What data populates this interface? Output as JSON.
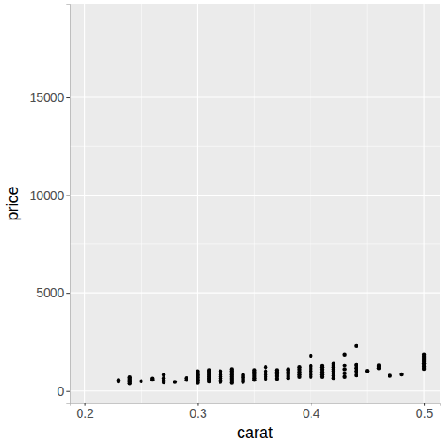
{
  "chart_data": {
    "type": "scatter",
    "x_label": "carat",
    "y_label": "price",
    "x": [
      0.23,
      0.23,
      0.24,
      0.24,
      0.24,
      0.24,
      0.24,
      0.25,
      0.26,
      0.26,
      0.27,
      0.27,
      0.27,
      0.27,
      0.28,
      0.29,
      0.29,
      0.3,
      0.3,
      0.3,
      0.3,
      0.3,
      0.3,
      0.3,
      0.3,
      0.3,
      0.31,
      0.31,
      0.31,
      0.31,
      0.31,
      0.31,
      0.31,
      0.31,
      0.32,
      0.32,
      0.32,
      0.32,
      0.32,
      0.32,
      0.32,
      0.33,
      0.33,
      0.33,
      0.33,
      0.33,
      0.33,
      0.33,
      0.33,
      0.34,
      0.34,
      0.34,
      0.34,
      0.34,
      0.34,
      0.35,
      0.35,
      0.35,
      0.35,
      0.35,
      0.35,
      0.36,
      0.36,
      0.36,
      0.36,
      0.36,
      0.36,
      0.37,
      0.37,
      0.37,
      0.37,
      0.37,
      0.38,
      0.38,
      0.38,
      0.38,
      0.38,
      0.38,
      0.39,
      0.39,
      0.39,
      0.39,
      0.39,
      0.4,
      0.4,
      0.4,
      0.4,
      0.4,
      0.4,
      0.4,
      0.4,
      0.41,
      0.41,
      0.41,
      0.41,
      0.41,
      0.41,
      0.42,
      0.42,
      0.42,
      0.42,
      0.42,
      0.42,
      0.42,
      0.42,
      0.43,
      0.43,
      0.43,
      0.43,
      0.43,
      0.44,
      0.44,
      0.44,
      0.44,
      0.44,
      0.44,
      0.45,
      0.46,
      0.46,
      0.46,
      0.47,
      0.48,
      0.5,
      0.5,
      0.5,
      0.5,
      0.5,
      0.5,
      0.5,
      0.5
    ],
    "values": [
      480,
      560,
      380,
      460,
      540,
      620,
      700,
      500,
      570,
      630,
      440,
      540,
      660,
      820,
      460,
      560,
      660,
      420,
      500,
      560,
      620,
      700,
      770,
      840,
      920,
      1000,
      480,
      580,
      660,
      740,
      820,
      900,
      980,
      1050,
      460,
      560,
      650,
      740,
      830,
      920,
      1000,
      420,
      520,
      620,
      720,
      820,
      920,
      1000,
      1100,
      460,
      540,
      620,
      700,
      760,
      820,
      560,
      660,
      760,
      860,
      960,
      1050,
      620,
      720,
      820,
      920,
      1000,
      1200,
      620,
      760,
      860,
      960,
      1050,
      660,
      760,
      860,
      960,
      1050,
      1100,
      720,
      840,
      960,
      1080,
      1200,
      720,
      820,
      920,
      1020,
      1120,
      1220,
      1300,
      1800,
      720,
      840,
      960,
      1080,
      1200,
      1300,
      660,
      780,
      900,
      1000,
      1100,
      1200,
      1300,
      1400,
      720,
      900,
      1100,
      1300,
      1850,
      800,
      1000,
      1150,
      1300,
      1350,
      2300,
      1020,
      1150,
      1250,
      1320,
      780,
      850,
      1120,
      1220,
      1320,
      1420,
      1520,
      1620,
      1750,
      1850
    ],
    "color": "#000000",
    "xlim": [
      0.187,
      0.514
    ],
    "ylim": [
      -600,
      19750
    ],
    "xticks": [
      0.2,
      0.3,
      0.4,
      0.5
    ],
    "yticks": [
      0,
      5000,
      10000,
      15000
    ],
    "grid": true
  }
}
